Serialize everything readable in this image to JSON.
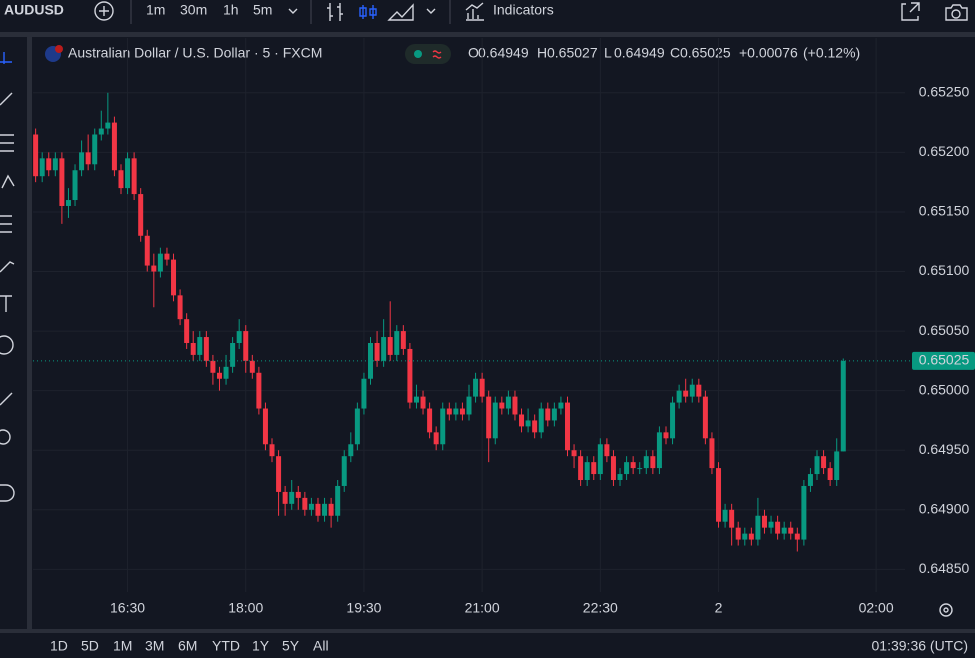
{
  "toolbar": {
    "symbol": "AUDUSD",
    "intervals": [
      "1m",
      "30m",
      "1h",
      "5m"
    ],
    "active_interval": 3,
    "indicators": "Indicators"
  },
  "chart_data": {
    "type": "candlestick",
    "title": "Australian Dollar / U.S. Dollar · 5 · FXCM",
    "legend": {
      "o": "O",
      "h": "H",
      "l": "L",
      "c": "C",
      "change": "+0.00076",
      "change_pct": "(+0.12%)"
    },
    "up_color": "#089981",
    "down_color": "#f23645",
    "x": [
      920,
      925,
      930,
      935,
      940,
      945,
      950,
      955,
      960,
      965,
      970,
      975,
      980,
      985,
      990,
      995,
      1000,
      1005,
      1010,
      1015,
      1020,
      1025,
      1030,
      1035,
      1040,
      1045,
      1050,
      1055,
      1060,
      1065,
      1070,
      1075,
      1080,
      1085,
      1090,
      1095,
      1100,
      1105,
      1110,
      1115,
      1120,
      1125,
      1130,
      1135,
      1140,
      1145,
      1150,
      1155,
      1160,
      1165,
      1170,
      1175,
      1180,
      1185,
      1190,
      1195,
      1200,
      1205,
      1210,
      1215,
      1220,
      1225,
      1230,
      1235,
      1240,
      1245,
      1250,
      1255,
      1260,
      1265,
      1270,
      1275,
      1280,
      1285,
      1290,
      1295,
      1300,
      1305,
      1310,
      1315,
      1320,
      1325,
      1330,
      1335,
      1340,
      1345,
      1350,
      1355,
      1360,
      1365,
      1370,
      1375,
      1380,
      1385,
      1390,
      1395,
      1400,
      1405,
      1410,
      1415,
      1420,
      1425,
      1430,
      1435,
      1440,
      1445,
      1450,
      1455,
      1460,
      1465,
      1470,
      1475,
      1480,
      1485,
      1490,
      1495,
      1500,
      1505,
      1510,
      1515,
      1520,
      1525,
      1530,
      1535
    ],
    "open": [
      0.65215,
      0.6518,
      0.65195,
      0.65185,
      0.65195,
      0.65155,
      0.6516,
      0.65185,
      0.652,
      0.6519,
      0.65215,
      0.6522,
      0.65225,
      0.65185,
      0.6517,
      0.65195,
      0.65165,
      0.6513,
      0.65105,
      0.651,
      0.65115,
      0.6511,
      0.6508,
      0.6506,
      0.6504,
      0.6503,
      0.65045,
      0.65025,
      0.65015,
      0.6501,
      0.6502,
      0.6504,
      0.6505,
      0.65025,
      0.65015,
      0.64985,
      0.64955,
      0.64945,
      0.64915,
      0.64905,
      0.64915,
      0.6491,
      0.649,
      0.64905,
      0.64895,
      0.64905,
      0.64895,
      0.6492,
      0.64945,
      0.64955,
      0.64985,
      0.6501,
      0.6504,
      0.65025,
      0.65045,
      0.6503,
      0.6505,
      0.65035,
      0.6499,
      0.64995,
      0.64985,
      0.64965,
      0.64955,
      0.64985,
      0.6498,
      0.64985,
      0.6498,
      0.64995,
      0.6501,
      0.64995,
      0.6496,
      0.6499,
      0.64985,
      0.64995,
      0.6498,
      0.6497,
      0.64975,
      0.64965,
      0.64985,
      0.64975,
      0.64985,
      0.6499,
      0.6495,
      0.64945,
      0.64925,
      0.6494,
      0.6493,
      0.64955,
      0.64945,
      0.64925,
      0.6493,
      0.6494,
      0.64935,
      0.64935,
      0.64945,
      0.64935,
      0.64965,
      0.6496,
      0.6499,
      0.65,
      0.64995,
      0.65005,
      0.64995,
      0.6496,
      0.64935,
      0.6489,
      0.649,
      0.64885,
      0.64875,
      0.6488,
      0.64875,
      0.64895,
      0.64885,
      0.6489,
      0.6488,
      0.64885,
      0.6488,
      0.64875,
      0.6492,
      0.6493,
      0.64945,
      0.64935,
      0.64925,
      0.64949
    ],
    "high": [
      0.6522,
      0.652,
      0.652,
      0.652,
      0.652,
      0.6517,
      0.6519,
      0.6521,
      0.65215,
      0.6522,
      0.65235,
      0.6525,
      0.6523,
      0.6519,
      0.652,
      0.652,
      0.6517,
      0.65135,
      0.65115,
      0.6512,
      0.6512,
      0.65115,
      0.65085,
      0.65065,
      0.6505,
      0.6505,
      0.6505,
      0.6503,
      0.6502,
      0.6503,
      0.65045,
      0.6506,
      0.65055,
      0.6503,
      0.6502,
      0.6499,
      0.6496,
      0.6495,
      0.6492,
      0.64925,
      0.6492,
      0.64915,
      0.6491,
      0.6491,
      0.6491,
      0.6491,
      0.64925,
      0.6495,
      0.64965,
      0.6499,
      0.65015,
      0.65045,
      0.6505,
      0.6506,
      0.65075,
      0.65055,
      0.65055,
      0.6504,
      0.65005,
      0.65,
      0.6499,
      0.6497,
      0.6499,
      0.6499,
      0.6499,
      0.6499,
      0.65005,
      0.65015,
      0.65015,
      0.65,
      0.64995,
      0.64995,
      0.65,
      0.65,
      0.64985,
      0.64985,
      0.6498,
      0.6499,
      0.6499,
      0.6499,
      0.64995,
      0.64995,
      0.64955,
      0.6495,
      0.64945,
      0.64945,
      0.6496,
      0.6496,
      0.6495,
      0.64935,
      0.64945,
      0.64945,
      0.6494,
      0.6495,
      0.6495,
      0.6497,
      0.6497,
      0.64995,
      0.65005,
      0.6501,
      0.6501,
      0.6501,
      0.65,
      0.64965,
      0.6494,
      0.64905,
      0.64905,
      0.6489,
      0.64885,
      0.64885,
      0.6491,
      0.649,
      0.64895,
      0.64895,
      0.6489,
      0.6489,
      0.64885,
      0.64925,
      0.64935,
      0.6495,
      0.6495,
      0.6494,
      0.6496,
      0.65027
    ],
    "low": [
      0.65175,
      0.65175,
      0.6518,
      0.6518,
      0.6514,
      0.65145,
      0.65155,
      0.6518,
      0.65185,
      0.65185,
      0.6521,
      0.65215,
      0.6518,
      0.65165,
      0.65165,
      0.6516,
      0.65125,
      0.651,
      0.6507,
      0.65095,
      0.65105,
      0.65075,
      0.65055,
      0.65035,
      0.65025,
      0.65025,
      0.6502,
      0.65005,
      0.65,
      0.65005,
      0.65015,
      0.65035,
      0.65015,
      0.6501,
      0.6498,
      0.6495,
      0.6494,
      0.64895,
      0.64895,
      0.649,
      0.649,
      0.64895,
      0.64895,
      0.6489,
      0.6489,
      0.64885,
      0.6489,
      0.64915,
      0.6494,
      0.6495,
      0.6498,
      0.65005,
      0.6502,
      0.6502,
      0.65025,
      0.65025,
      0.6503,
      0.64985,
      0.64985,
      0.6498,
      0.6496,
      0.6495,
      0.6495,
      0.64975,
      0.64975,
      0.64975,
      0.64975,
      0.6499,
      0.6499,
      0.6494,
      0.64955,
      0.6498,
      0.6498,
      0.64975,
      0.64965,
      0.64965,
      0.6496,
      0.6496,
      0.6497,
      0.6497,
      0.6498,
      0.64945,
      0.64935,
      0.6492,
      0.6492,
      0.64925,
      0.64925,
      0.6494,
      0.6492,
      0.6492,
      0.64925,
      0.6493,
      0.6493,
      0.6493,
      0.6493,
      0.6493,
      0.64955,
      0.64955,
      0.64985,
      0.6499,
      0.6499,
      0.6499,
      0.64955,
      0.6493,
      0.64885,
      0.64885,
      0.6487,
      0.6487,
      0.6487,
      0.6487,
      0.6487,
      0.6488,
      0.6488,
      0.64875,
      0.64875,
      0.64875,
      0.64865,
      0.6487,
      0.64915,
      0.64925,
      0.6493,
      0.6492,
      0.6492,
      0.64949
    ],
    "close": [
      0.6518,
      0.65195,
      0.65185,
      0.65195,
      0.65155,
      0.6516,
      0.65185,
      0.652,
      0.6519,
      0.65215,
      0.6522,
      0.65225,
      0.65185,
      0.6517,
      0.65195,
      0.65165,
      0.6513,
      0.65105,
      0.651,
      0.65115,
      0.6511,
      0.6508,
      0.6506,
      0.6504,
      0.6503,
      0.65045,
      0.65025,
      0.65015,
      0.6501,
      0.6502,
      0.6504,
      0.6505,
      0.65025,
      0.65015,
      0.64985,
      0.64955,
      0.64945,
      0.64915,
      0.64905,
      0.64915,
      0.6491,
      0.649,
      0.64905,
      0.64895,
      0.64905,
      0.64895,
      0.6492,
      0.64945,
      0.64955,
      0.64985,
      0.6501,
      0.6504,
      0.65025,
      0.65045,
      0.6503,
      0.6505,
      0.65035,
      0.6499,
      0.64995,
      0.64985,
      0.64965,
      0.64955,
      0.64985,
      0.6498,
      0.64985,
      0.6498,
      0.64995,
      0.6501,
      0.64995,
      0.6496,
      0.6499,
      0.64985,
      0.64995,
      0.6498,
      0.6497,
      0.64975,
      0.64965,
      0.64985,
      0.64975,
      0.64985,
      0.6499,
      0.6495,
      0.64945,
      0.64925,
      0.6494,
      0.6493,
      0.64955,
      0.64945,
      0.64925,
      0.6493,
      0.6494,
      0.64935,
      0.64935,
      0.64945,
      0.64935,
      0.64965,
      0.6496,
      0.6499,
      0.65,
      0.64995,
      0.65005,
      0.64995,
      0.6496,
      0.64935,
      0.6489,
      0.649,
      0.64885,
      0.64875,
      0.6488,
      0.64875,
      0.64895,
      0.64885,
      0.6489,
      0.6488,
      0.64885,
      0.6488,
      0.64875,
      0.6492,
      0.6493,
      0.64945,
      0.64935,
      0.64925,
      0.64949,
      0.65025
    ],
    "xlim": [
      918,
      1582
    ],
    "xticks": [
      {
        "value": 990,
        "label": "16:30"
      },
      {
        "value": 1080,
        "label": "18:00"
      },
      {
        "value": 1170,
        "label": "19:30"
      },
      {
        "value": 1260,
        "label": "21:00"
      },
      {
        "value": 1350,
        "label": "22:30"
      },
      {
        "value": 1440,
        "label": "2"
      },
      {
        "value": 1560,
        "label": "02:00"
      }
    ],
    "ylim": [
      0.64831,
      0.65296
    ],
    "yticks": [
      {
        "value": 0.6525,
        "label": "0.65250"
      },
      {
        "value": 0.652,
        "label": "0.65200"
      },
      {
        "value": 0.6515,
        "label": "0.65150"
      },
      {
        "value": 0.651,
        "label": "0.65100"
      },
      {
        "value": 0.6505,
        "label": "0.65050"
      },
      {
        "value": 0.65,
        "label": "0.65000"
      },
      {
        "value": 0.6495,
        "label": "0.64950"
      },
      {
        "value": 0.649,
        "label": "0.64900"
      },
      {
        "value": 0.6485,
        "label": "0.64850"
      }
    ],
    "grid": true
  },
  "footer": {
    "ranges": [
      "1D",
      "5D",
      "1M",
      "3M",
      "6M",
      "YTD",
      "1Y",
      "5Y",
      "All"
    ],
    "clock": "01:39:36 (UTC)"
  }
}
